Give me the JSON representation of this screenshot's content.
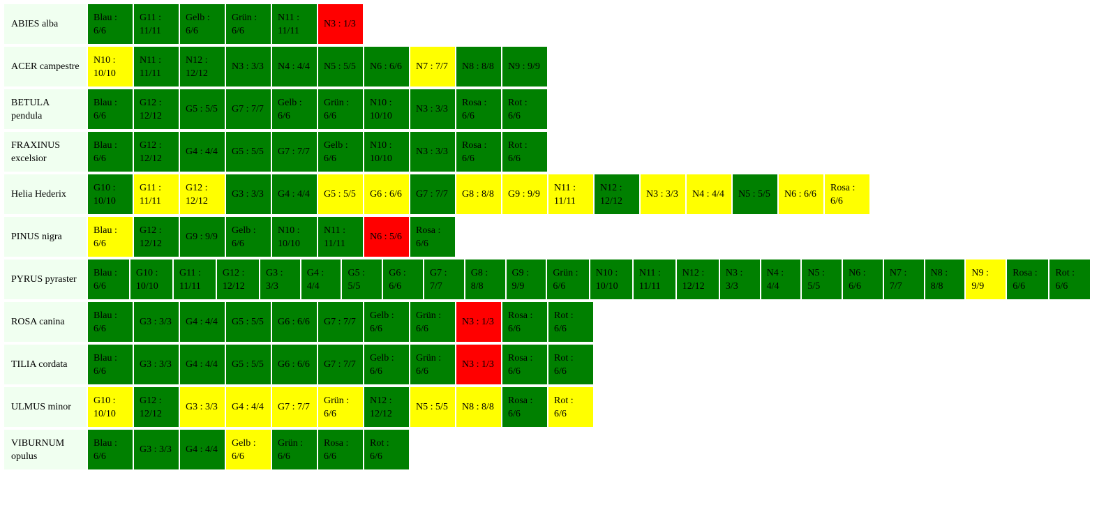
{
  "rows": [
    {
      "name": "ABIES alba",
      "cells": [
        {
          "label": "Blau : 6/6",
          "color": "green"
        },
        {
          "label": "G11 : 11/11",
          "color": "green"
        },
        {
          "label": "Gelb : 6/6",
          "color": "green"
        },
        {
          "label": "Grün : 6/6",
          "color": "green"
        },
        {
          "label": "N11 : 11/11",
          "color": "green"
        },
        {
          "label": "N3 : 1/3",
          "color": "red"
        }
      ]
    },
    {
      "name": "ACER campestre",
      "cells": [
        {
          "label": "N10 : 10/10",
          "color": "yellow"
        },
        {
          "label": "N11 : 11/11",
          "color": "green"
        },
        {
          "label": "N12 : 12/12",
          "color": "green"
        },
        {
          "label": "N3 : 3/3",
          "color": "green"
        },
        {
          "label": "N4 : 4/4",
          "color": "green"
        },
        {
          "label": "N5 : 5/5",
          "color": "green"
        },
        {
          "label": "N6 : 6/6",
          "color": "green"
        },
        {
          "label": "N7 : 7/7",
          "color": "yellow"
        },
        {
          "label": "N8 : 8/8",
          "color": "green"
        },
        {
          "label": "N9 : 9/9",
          "color": "green"
        }
      ]
    },
    {
      "name": "BETULA pendula",
      "cells": [
        {
          "label": "Blau : 6/6",
          "color": "green"
        },
        {
          "label": "G12 : 12/12",
          "color": "green"
        },
        {
          "label": "G5 : 5/5",
          "color": "green"
        },
        {
          "label": "G7 : 7/7",
          "color": "green"
        },
        {
          "label": "Gelb : 6/6",
          "color": "green"
        },
        {
          "label": "Grün : 6/6",
          "color": "green"
        },
        {
          "label": "N10 : 10/10",
          "color": "green"
        },
        {
          "label": "N3 : 3/3",
          "color": "green"
        },
        {
          "label": "Rosa : 6/6",
          "color": "green"
        },
        {
          "label": "Rot : 6/6",
          "color": "green"
        }
      ]
    },
    {
      "name": "FRAXINUS excelsior",
      "cells": [
        {
          "label": "Blau : 6/6",
          "color": "green"
        },
        {
          "label": "G12 : 12/12",
          "color": "green"
        },
        {
          "label": "G4 : 4/4",
          "color": "green"
        },
        {
          "label": "G5 : 5/5",
          "color": "green"
        },
        {
          "label": "G7 : 7/7",
          "color": "green"
        },
        {
          "label": "Gelb : 6/6",
          "color": "green"
        },
        {
          "label": "N10 : 10/10",
          "color": "green"
        },
        {
          "label": "N3 : 3/3",
          "color": "green"
        },
        {
          "label": "Rosa : 6/6",
          "color": "green"
        },
        {
          "label": "Rot : 6/6",
          "color": "green"
        }
      ]
    },
    {
      "name": "Helia Hederix",
      "cells": [
        {
          "label": "G10 : 10/10",
          "color": "green"
        },
        {
          "label": "G11 : 11/11",
          "color": "yellow"
        },
        {
          "label": "G12 : 12/12",
          "color": "yellow"
        },
        {
          "label": "G3 : 3/3",
          "color": "green"
        },
        {
          "label": "G4 : 4/4",
          "color": "green"
        },
        {
          "label": "G5 : 5/5",
          "color": "yellow"
        },
        {
          "label": "G6 : 6/6",
          "color": "yellow"
        },
        {
          "label": "G7 : 7/7",
          "color": "green"
        },
        {
          "label": "G8 : 8/8",
          "color": "yellow"
        },
        {
          "label": "G9 : 9/9",
          "color": "yellow"
        },
        {
          "label": "N11 : 11/11",
          "color": "yellow"
        },
        {
          "label": "N12 : 12/12",
          "color": "green"
        },
        {
          "label": "N3 : 3/3",
          "color": "yellow"
        },
        {
          "label": "N4 : 4/4",
          "color": "yellow"
        },
        {
          "label": "N5 : 5/5",
          "color": "green"
        },
        {
          "label": "N6 : 6/6",
          "color": "yellow"
        },
        {
          "label": "Rosa : 6/6",
          "color": "yellow"
        }
      ]
    },
    {
      "name": "PINUS nigra",
      "cells": [
        {
          "label": "Blau : 6/6",
          "color": "yellow"
        },
        {
          "label": "G12 : 12/12",
          "color": "green"
        },
        {
          "label": "G9 : 9/9",
          "color": "green"
        },
        {
          "label": "Gelb : 6/6",
          "color": "green"
        },
        {
          "label": "N10 : 10/10",
          "color": "green"
        },
        {
          "label": "N11 : 11/11",
          "color": "green"
        },
        {
          "label": "N6 : 5/6",
          "color": "red"
        },
        {
          "label": "Rosa : 6/6",
          "color": "green"
        }
      ]
    },
    {
      "name": "PYRUS pyraster",
      "cells": [
        {
          "label": "Blau : 6/6",
          "color": "green"
        },
        {
          "label": "G10 : 10/10",
          "color": "green"
        },
        {
          "label": "G11 : 11/11",
          "color": "green"
        },
        {
          "label": "G12 : 12/12",
          "color": "green"
        },
        {
          "label": "G3 : 3/3",
          "color": "green"
        },
        {
          "label": "G4 : 4/4",
          "color": "green"
        },
        {
          "label": "G5 : 5/5",
          "color": "green"
        },
        {
          "label": "G6 : 6/6",
          "color": "green"
        },
        {
          "label": "G7 : 7/7",
          "color": "green"
        },
        {
          "label": "G8 : 8/8",
          "color": "green"
        },
        {
          "label": "G9 : 9/9",
          "color": "green"
        },
        {
          "label": "Grün : 6/6",
          "color": "green"
        },
        {
          "label": "N10 : 10/10",
          "color": "green"
        },
        {
          "label": "N11 : 11/11",
          "color": "green"
        },
        {
          "label": "N12 : 12/12",
          "color": "green"
        },
        {
          "label": "N3 : 3/3",
          "color": "green"
        },
        {
          "label": "N4 : 4/4",
          "color": "green"
        },
        {
          "label": "N5 : 5/5",
          "color": "green"
        },
        {
          "label": "N6 : 6/6",
          "color": "green"
        },
        {
          "label": "N7 : 7/7",
          "color": "green"
        },
        {
          "label": "N8 : 8/8",
          "color": "green"
        },
        {
          "label": "N9 : 9/9",
          "color": "yellow"
        },
        {
          "label": "Rosa : 6/6",
          "color": "green"
        },
        {
          "label": "Rot : 6/6",
          "color": "green"
        }
      ]
    },
    {
      "name": "ROSA canina",
      "cells": [
        {
          "label": "Blau : 6/6",
          "color": "green"
        },
        {
          "label": "G3 : 3/3",
          "color": "green"
        },
        {
          "label": "G4 : 4/4",
          "color": "green"
        },
        {
          "label": "G5 : 5/5",
          "color": "green"
        },
        {
          "label": "G6 : 6/6",
          "color": "green"
        },
        {
          "label": "G7 : 7/7",
          "color": "green"
        },
        {
          "label": "Gelb : 6/6",
          "color": "green"
        },
        {
          "label": "Grün : 6/6",
          "color": "green"
        },
        {
          "label": "N3 : 1/3",
          "color": "red"
        },
        {
          "label": "Rosa : 6/6",
          "color": "green"
        },
        {
          "label": "Rot : 6/6",
          "color": "green"
        }
      ]
    },
    {
      "name": "TILIA cordata",
      "cells": [
        {
          "label": "Blau : 6/6",
          "color": "green"
        },
        {
          "label": "G3 : 3/3",
          "color": "green"
        },
        {
          "label": "G4 : 4/4",
          "color": "green"
        },
        {
          "label": "G5 : 5/5",
          "color": "green"
        },
        {
          "label": "G6 : 6/6",
          "color": "green"
        },
        {
          "label": "G7 : 7/7",
          "color": "green"
        },
        {
          "label": "Gelb : 6/6",
          "color": "green"
        },
        {
          "label": "Grün : 6/6",
          "color": "green"
        },
        {
          "label": "N3 : 1/3",
          "color": "red"
        },
        {
          "label": "Rosa : 6/6",
          "color": "green"
        },
        {
          "label": "Rot : 6/6",
          "color": "green"
        }
      ]
    },
    {
      "name": "ULMUS minor",
      "cells": [
        {
          "label": "G10 : 10/10",
          "color": "yellow"
        },
        {
          "label": "G12 : 12/12",
          "color": "green"
        },
        {
          "label": "G3 : 3/3",
          "color": "yellow"
        },
        {
          "label": "G4 : 4/4",
          "color": "yellow"
        },
        {
          "label": "G7 : 7/7",
          "color": "yellow"
        },
        {
          "label": "Grün : 6/6",
          "color": "yellow"
        },
        {
          "label": "N12 : 12/12",
          "color": "green"
        },
        {
          "label": "N5 : 5/5",
          "color": "yellow"
        },
        {
          "label": "N8 : 8/8",
          "color": "yellow"
        },
        {
          "label": "Rosa : 6/6",
          "color": "green"
        },
        {
          "label": "Rot : 6/6",
          "color": "yellow"
        }
      ]
    },
    {
      "name": "VIBURNUM opulus",
      "cells": [
        {
          "label": "Blau : 6/6",
          "color": "green"
        },
        {
          "label": "G3 : 3/3",
          "color": "green"
        },
        {
          "label": "G4 : 4/4",
          "color": "green"
        },
        {
          "label": "Gelb : 6/6",
          "color": "yellow"
        },
        {
          "label": "Grün : 6/6",
          "color": "green"
        },
        {
          "label": "Rosa : 6/6",
          "color": "green"
        },
        {
          "label": "Rot : 6/6",
          "color": "green"
        }
      ]
    }
  ]
}
